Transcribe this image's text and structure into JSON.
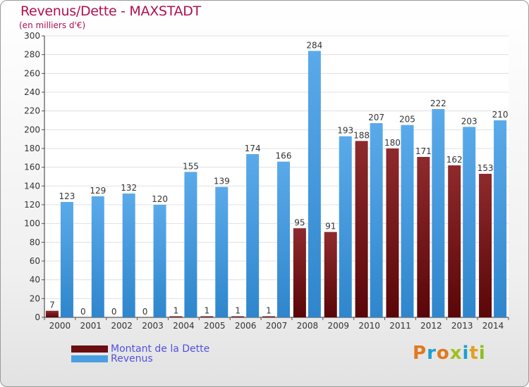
{
  "chart_data": {
    "type": "bar",
    "title": "Revenus/Dette - MAXSTADT",
    "subtitle": "(en milliers d'€)",
    "categories": [
      "2000",
      "2001",
      "2002",
      "2003",
      "2004",
      "2005",
      "2006",
      "2007",
      "2008",
      "2009",
      "2010",
      "2011",
      "2012",
      "2013",
      "2014"
    ],
    "series": [
      {
        "name": "Montant de la Dette",
        "color": "#7a1518",
        "values": [
          7,
          0,
          0,
          0,
          1,
          1,
          1,
          1,
          95,
          91,
          188,
          180,
          171,
          162,
          153
        ]
      },
      {
        "name": "Revenus",
        "color": "#4a9fe0",
        "values": [
          123,
          129,
          132,
          120,
          155,
          139,
          174,
          166,
          284,
          193,
          207,
          205,
          222,
          203,
          210
        ]
      }
    ],
    "ylim": [
      0,
      300
    ],
    "yticks": [
      0,
      20,
      40,
      60,
      80,
      100,
      120,
      140,
      160,
      180,
      200,
      220,
      240,
      260,
      280,
      300
    ],
    "grid": true,
    "legend_position": "bottom-left"
  },
  "logo": {
    "text": "Proxiti",
    "colors": [
      "#e07820",
      "#1aa0d0",
      "#e07820",
      "#a0c020",
      "#1aa0d0",
      "#e0a020",
      "#8ac020"
    ]
  }
}
